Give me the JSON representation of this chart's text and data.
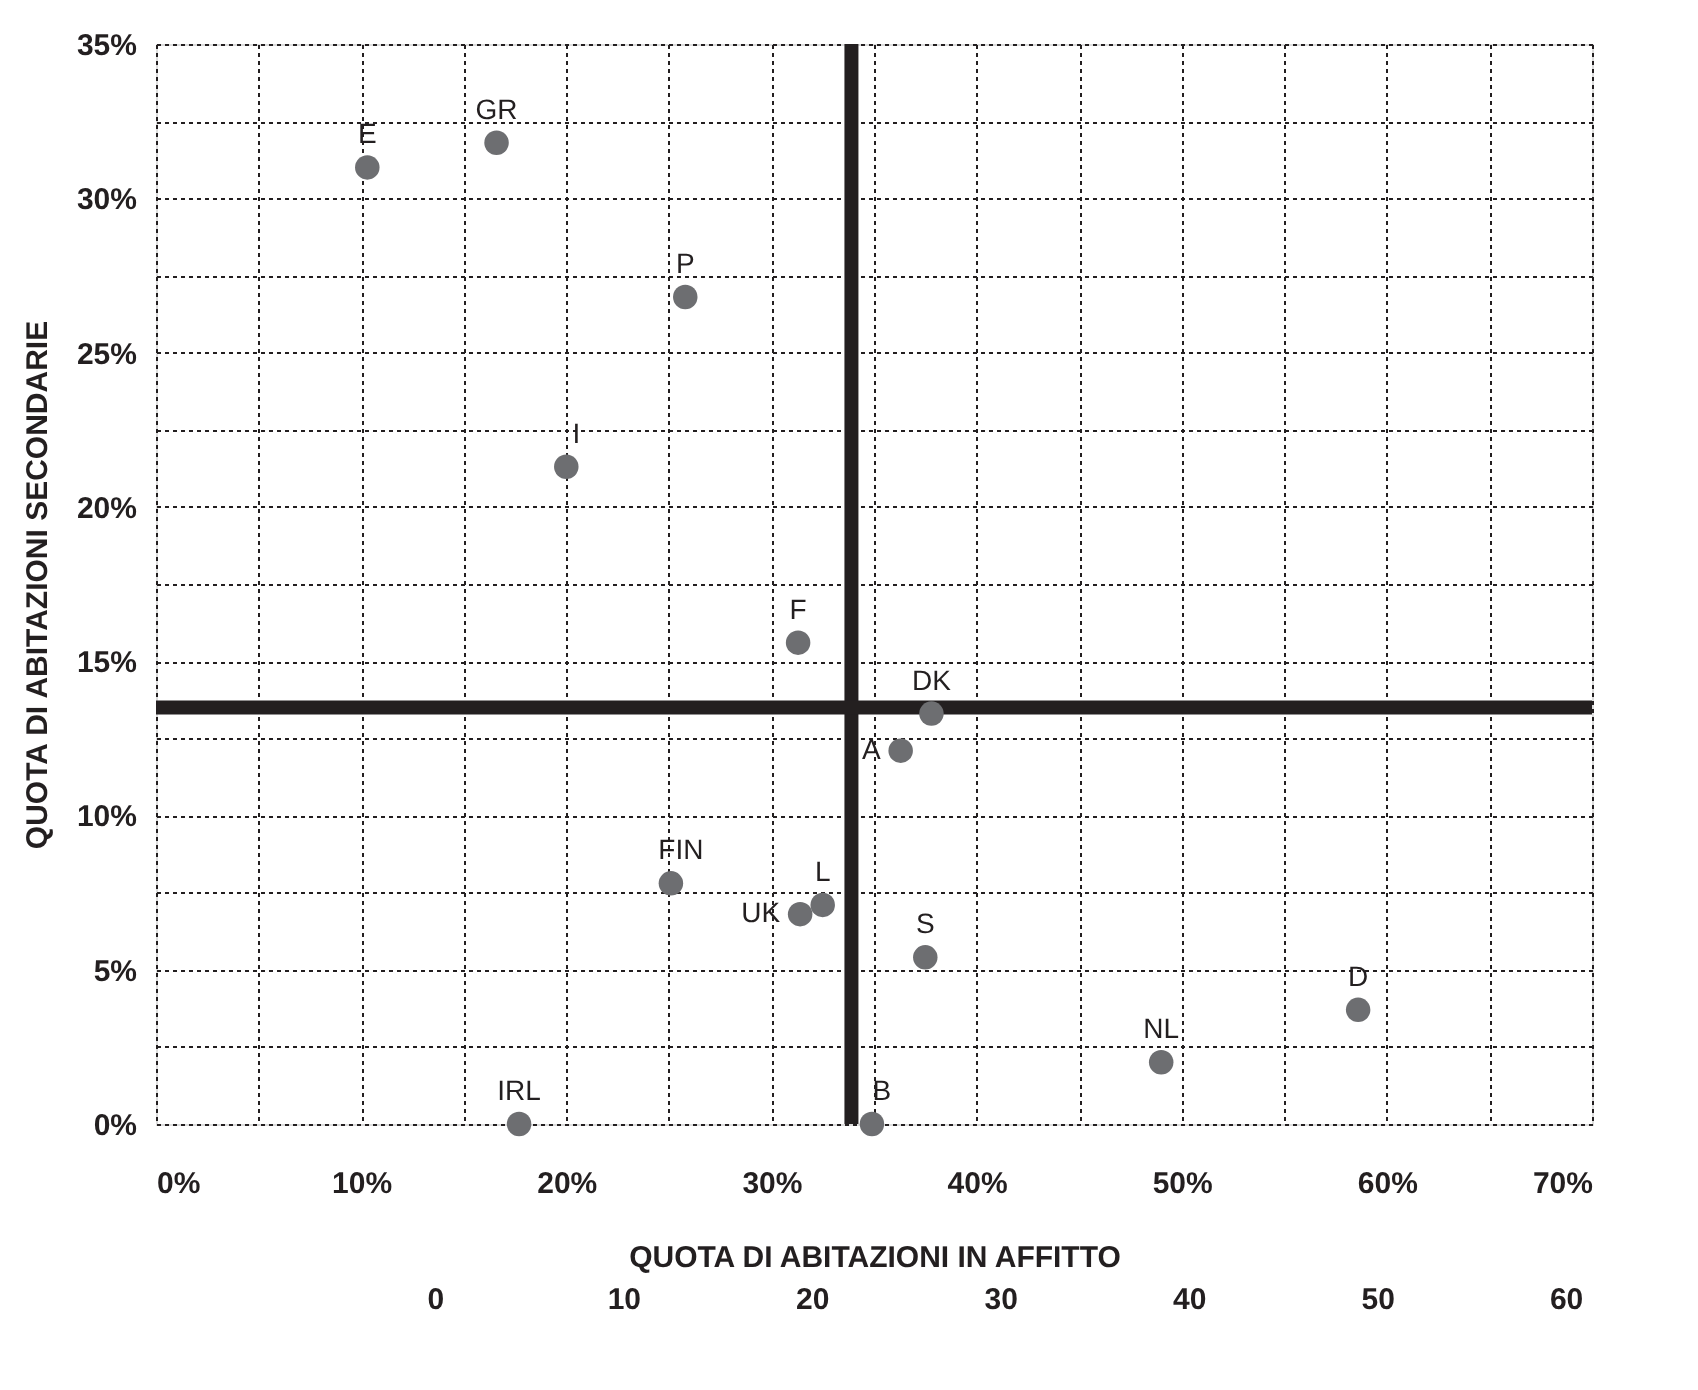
{
  "chart_data": {
    "type": "scatter",
    "xlabel": "QUOTA DI ABITAZIONI IN AFFITTO",
    "ylabel": "QUOTA DI ABITAZIONI SECONDARIE",
    "xlim": [
      0,
      70
    ],
    "xticks": [
      {
        "value": 0,
        "label": "0%"
      },
      {
        "value": 5,
        "label": null
      },
      {
        "value": 10,
        "label": "10%"
      },
      {
        "value": 15,
        "label": null
      },
      {
        "value": 20,
        "label": "20%"
      },
      {
        "value": 25,
        "label": null
      },
      {
        "value": 30,
        "label": "30%"
      },
      {
        "value": 35,
        "label": null
      },
      {
        "value": 40,
        "label": "40%"
      },
      {
        "value": 45,
        "label": null
      },
      {
        "value": 50,
        "label": "50%"
      },
      {
        "value": 55,
        "label": null
      },
      {
        "value": 60,
        "label": "60%"
      },
      {
        "value": 65,
        "label": null
      },
      {
        "value": 70,
        "label": "70%"
      }
    ],
    "ylim": [
      0,
      35
    ],
    "yticks": [
      {
        "value": 0,
        "label": "0%"
      },
      {
        "value": 2.5,
        "label": null
      },
      {
        "value": 5,
        "label": "5%"
      },
      {
        "value": 7.5,
        "label": null
      },
      {
        "value": 10,
        "label": "10%"
      },
      {
        "value": 12.5,
        "label": null
      },
      {
        "value": 15,
        "label": "15%"
      },
      {
        "value": 17.5,
        "label": null
      },
      {
        "value": 20,
        "label": "20%"
      },
      {
        "value": 22.5,
        "label": null
      },
      {
        "value": 25,
        "label": "25%"
      },
      {
        "value": 27.5,
        "label": null
      },
      {
        "value": 30,
        "label": "30%"
      },
      {
        "value": 32.5,
        "label": null
      },
      {
        "value": 35,
        "label": "35%"
      }
    ],
    "x2lim": [
      -14.8,
      61.4
    ],
    "x2ticks": [
      0,
      10,
      20,
      30,
      40,
      50,
      60
    ],
    "grid": true,
    "legend": false,
    "marker": "circle",
    "ref_lines": [
      {
        "axis": "x",
        "value": 33.9,
        "color": "#231f20"
      },
      {
        "axis": "y",
        "value": 13.5,
        "color": "#231f20"
      }
    ],
    "series": [
      {
        "name": "E",
        "color": "#6d6e71",
        "x": [
          10.3
        ],
        "values": [
          31.0
        ]
      },
      {
        "name": "GR",
        "color": "#6d6e71",
        "x": [
          16.6
        ],
        "values": [
          31.8
        ]
      },
      {
        "name": "P",
        "color": "#6d6e71",
        "x": [
          25.8
        ],
        "values": [
          26.8
        ]
      },
      {
        "name": "I",
        "color": "#6d6e71",
        "x": [
          20.0
        ],
        "values": [
          21.3
        ]
      },
      {
        "name": "F",
        "color": "#6d6e71",
        "x": [
          31.3
        ],
        "values": [
          15.6
        ]
      },
      {
        "name": "DK",
        "color": "#6d6e71",
        "x": [
          37.8
        ],
        "values": [
          13.3
        ]
      },
      {
        "name": "A",
        "color": "#6d6e71",
        "x": [
          36.3
        ],
        "values": [
          12.1
        ]
      },
      {
        "name": "FIN",
        "color": "#6d6e71",
        "x": [
          25.1
        ],
        "values": [
          7.8
        ]
      },
      {
        "name": "UK",
        "color": "#6d6e71",
        "x": [
          31.4
        ],
        "values": [
          6.8
        ]
      },
      {
        "name": "L",
        "color": "#6d6e71",
        "x": [
          32.5
        ],
        "values": [
          7.1
        ]
      },
      {
        "name": "S",
        "color": "#6d6e71",
        "x": [
          37.5
        ],
        "values": [
          5.4
        ]
      },
      {
        "name": "D",
        "color": "#6d6e71",
        "x": [
          58.6
        ],
        "values": [
          3.7
        ]
      },
      {
        "name": "NL",
        "color": "#6d6e71",
        "x": [
          49.0
        ],
        "values": [
          2.0
        ]
      },
      {
        "name": "IRL",
        "color": "#6d6e71",
        "x": [
          17.7
        ],
        "values": [
          0
        ]
      },
      {
        "name": "B",
        "color": "#6d6e71",
        "x": [
          34.9
        ],
        "values": [
          0
        ]
      }
    ]
  }
}
